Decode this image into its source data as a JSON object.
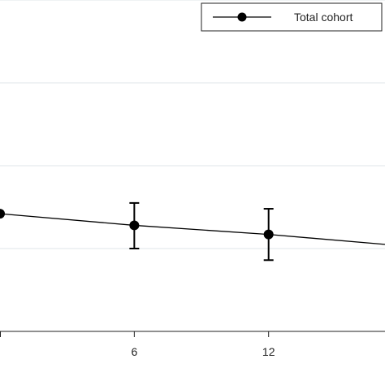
{
  "chart_data": {
    "type": "line",
    "title": "",
    "xlabel": "",
    "ylabel": "",
    "xlim": [
      0,
      17.2
    ],
    "ylim": [
      0,
      4
    ],
    "x_ticks": [
      {
        "value": 6,
        "label": "6"
      },
      {
        "value": 12,
        "label": "12"
      }
    ],
    "y_gridlines": [
      1,
      2,
      3,
      4
    ],
    "grid": true,
    "legend_position": "top-right",
    "series": [
      {
        "name": "Total cohort",
        "color": "#000000",
        "points": [
          {
            "x": 0,
            "y": 1.42
          },
          {
            "x": 6,
            "y": 1.28,
            "lower": 1.0,
            "upper": 1.55
          },
          {
            "x": 12,
            "y": 1.17,
            "lower": 0.86,
            "upper": 1.48
          },
          {
            "x": 17.2,
            "y": 1.05
          }
        ]
      }
    ]
  }
}
